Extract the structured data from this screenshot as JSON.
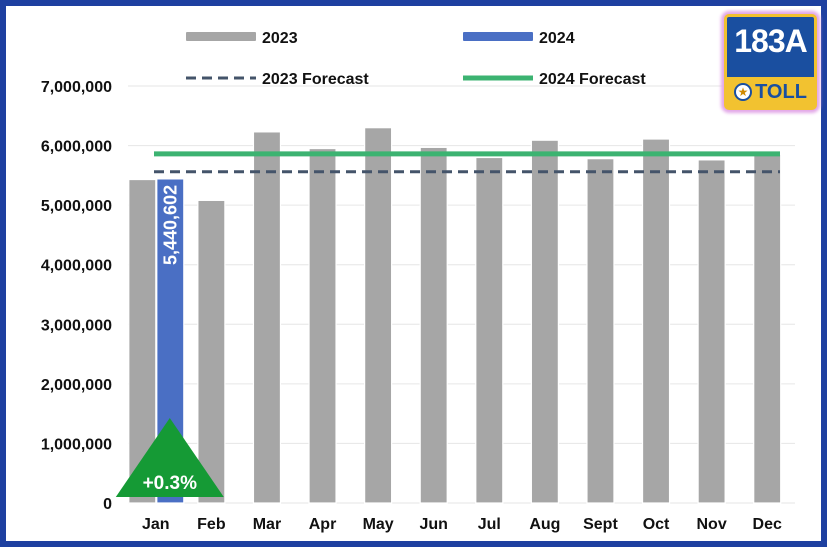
{
  "chart_data": {
    "type": "bar",
    "categories": [
      "Jan",
      "Feb",
      "Mar",
      "Apr",
      "May",
      "Jun",
      "Jul",
      "Aug",
      "Sept",
      "Oct",
      "Nov",
      "Dec"
    ],
    "series": [
      {
        "name": "2023",
        "color": "#a6a6a6",
        "values": [
          5430000,
          5080000,
          6230000,
          5950000,
          6300000,
          5970000,
          5800000,
          6090000,
          5780000,
          6110000,
          5760000,
          5850000
        ]
      },
      {
        "name": "2024",
        "color": "#4a6fc4",
        "values": [
          5440602,
          null,
          null,
          null,
          null,
          null,
          null,
          null,
          null,
          null,
          null,
          null
        ]
      }
    ],
    "forecasts": [
      {
        "name": "2023 Forecast",
        "value": 5560000,
        "color": "#44546a",
        "style": "dashed"
      },
      {
        "name": "2024 Forecast",
        "value": 5860000,
        "color": "#3cb371",
        "style": "solid"
      }
    ],
    "data_labels": [
      {
        "series": "2024",
        "category": "Jan",
        "text": "5,440,602"
      }
    ],
    "annotation": {
      "text": "+0.3%",
      "color": "#159a35",
      "shape": "triangle-up",
      "category": "Jan"
    },
    "yticks": [
      "0",
      "1,000,000",
      "2,000,000",
      "3,000,000",
      "4,000,000",
      "5,000,000",
      "6,000,000",
      "7,000,000"
    ],
    "ylim": [
      0,
      7000000
    ],
    "grid": true,
    "legend_position": "top",
    "title": "",
    "xlabel": "",
    "ylabel": ""
  },
  "logo": {
    "top_text": "183A",
    "bottom_text": "TOLL",
    "star_icon": "star-icon"
  }
}
